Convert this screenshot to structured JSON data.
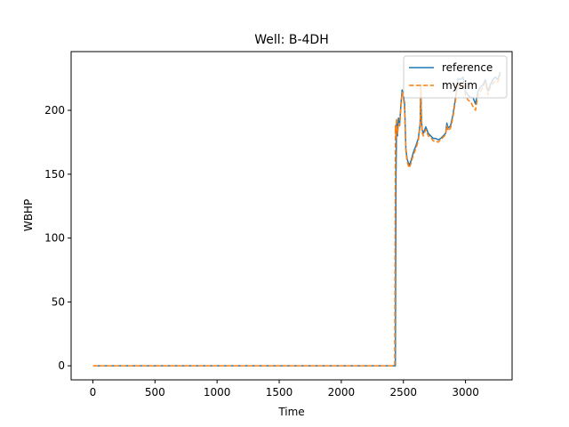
{
  "chart_data": {
    "type": "line",
    "title": "Well: B-4DH",
    "xlabel": "Time",
    "ylabel": "WBHP",
    "xlim": [
      -175,
      3375
    ],
    "ylim": [
      -11,
      246
    ],
    "xticks": [
      0,
      500,
      1000,
      1500,
      2000,
      2500,
      3000
    ],
    "yticks": [
      0,
      50,
      100,
      150,
      200
    ],
    "legend_position": "upper-right",
    "grid": false,
    "series": [
      {
        "name": "reference",
        "color": "#1f77b4",
        "dash": "solid",
        "x": [
          0,
          500,
          1000,
          1500,
          2000,
          2420,
          2435,
          2440,
          2445,
          2452,
          2460,
          2470,
          2480,
          2490,
          2500,
          2510,
          2520,
          2530,
          2545,
          2560,
          2580,
          2600,
          2620,
          2635,
          2640,
          2645,
          2650,
          2660,
          2680,
          2700,
          2720,
          2740,
          2760,
          2780,
          2800,
          2820,
          2840,
          2850,
          2860,
          2880,
          2900,
          2920,
          2940,
          2960,
          2980,
          3000,
          3020,
          3040,
          3060,
          3080,
          3100,
          3120,
          3140,
          3160,
          3180,
          3200,
          3220,
          3240,
          3260,
          3280
        ],
        "values": [
          0,
          0,
          0,
          0,
          0,
          0,
          0,
          150,
          192,
          180,
          194,
          190,
          205,
          216,
          212,
          205,
          170,
          162,
          157,
          160,
          167,
          172,
          178,
          190,
          220,
          195,
          185,
          182,
          187,
          182,
          180,
          178,
          178,
          177,
          178,
          180,
          182,
          190,
          186,
          188,
          197,
          210,
          225,
          224,
          226,
          215,
          212,
          210,
          210,
          205,
          215,
          218,
          220,
          224,
          215,
          220,
          224,
          226,
          224,
          230
        ]
      },
      {
        "name": "mysim",
        "color": "#ff7f0e",
        "dash": "dashed",
        "x": [
          0,
          500,
          1000,
          1500,
          2000,
          2420,
          2430,
          2435,
          2440,
          2445,
          2452,
          2460,
          2470,
          2480,
          2490,
          2500,
          2510,
          2520,
          2530,
          2545,
          2560,
          2580,
          2600,
          2620,
          2635,
          2640,
          2645,
          2650,
          2660,
          2680,
          2700,
          2720,
          2740,
          2760,
          2780,
          2800,
          2820,
          2840,
          2850,
          2860,
          2880,
          2900,
          2920,
          2940,
          2960,
          2980,
          3000,
          3020,
          3040,
          3060,
          3080,
          3100,
          3120,
          3140,
          3160,
          3180,
          3200,
          3220,
          3240,
          3260,
          3280
        ],
        "values": [
          0,
          0,
          0,
          0,
          0,
          0,
          0,
          188,
          178,
          194,
          182,
          188,
          188,
          203,
          214,
          210,
          200,
          168,
          160,
          155,
          158,
          165,
          170,
          176,
          188,
          218,
          194,
          183,
          180,
          185,
          180,
          179,
          176,
          176,
          175,
          177,
          179,
          181,
          188,
          184,
          186,
          195,
          208,
          222,
          221,
          222,
          212,
          208,
          207,
          203,
          200,
          212,
          215,
          218,
          222,
          212,
          218,
          221,
          223,
          222,
          228
        ]
      }
    ]
  }
}
